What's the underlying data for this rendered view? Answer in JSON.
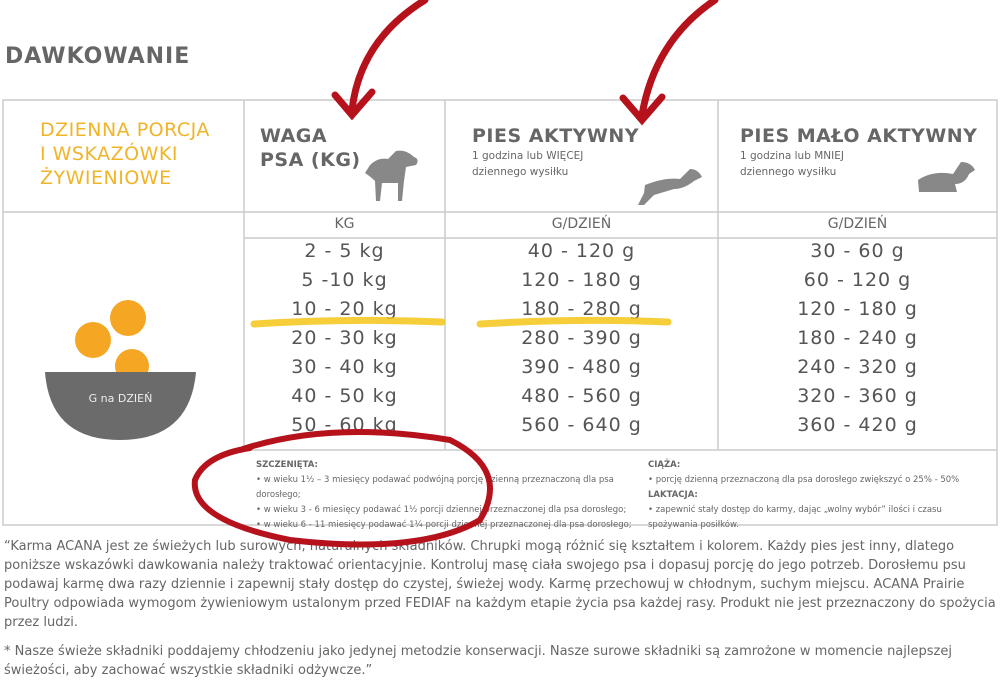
{
  "title": "DAWKOWANIE",
  "header": {
    "intro": [
      "DZIENNA PORCJA",
      "I WSKAZÓWKI",
      "ŻYWIENIOWE"
    ],
    "weight": [
      "WAGA",
      "PSA (KG)"
    ],
    "active": {
      "title": "PIES AKTYWNY",
      "subtitle": [
        "1 godzina lub WIĘCEJ",
        "dziennego wysiłku"
      ]
    },
    "inactive": {
      "title": "PIES MAŁO AKTYWNY",
      "subtitle": [
        "1 godzina lub MNIEJ",
        "dziennego wysiłku"
      ]
    }
  },
  "units": [
    "KG",
    "G/DZIEŃ",
    "G/DZIEŃ"
  ],
  "bowl_label": "G na DZIEŃ",
  "table": {
    "rows": [
      [
        "2 - 5 kg",
        "40 - 120 g",
        "30 - 60 g"
      ],
      [
        "5 -10 kg",
        "120 - 180 g",
        "60 - 120 g"
      ],
      [
        "10 - 20 kg",
        "180 - 280 g",
        "120 - 180 g"
      ],
      [
        "20 - 30 kg",
        "280 - 390 g",
        "180 - 240 g"
      ],
      [
        "30 - 40 kg",
        "390 - 480 g",
        "240 - 320 g"
      ],
      [
        "40 - 50 kg",
        "480 - 560 g",
        "320 - 360 g"
      ],
      [
        "50 - 60 kg",
        "560 - 640 g",
        "360 - 420 g"
      ]
    ]
  },
  "notes": {
    "puppies": {
      "title": "SZCZENIĘTA:",
      "items": [
        "w wieku 1½ – 3 miesięcy podawać podwójną porcję dzienną przeznaczoną dla psa dorosłego;",
        "w wieku 3 - 6 miesięcy podawać 1½ porcji dziennej przeznaczonej dla psa dorosłego;",
        "w wieku 6 - 11 miesięcy podawać 1¼ porcji dziennej przeznaczonej dla psa dorosłego;"
      ]
    },
    "pregnancy": {
      "title": "CIĄŻA:",
      "text": "porcję dzienną przeznaczoną dla psa dorosłego zwiększyć o 25% - 50%"
    },
    "lactation": {
      "title": "LAKTACJA:",
      "text": "zapewnić stały dostęp do karmy, dając „wolny wybór” ilości i czasu spożywania posiłków."
    }
  },
  "footer": [
    "“Karma ACANA jest ze świeżych lub surowych, naturalnych składników. Chrupki mogą różnić się kształtem i kolorem. Każdy pies jest inny, dlatego poniższe wskazówki dawkowania należy traktować orientacyjnie. Kontroluj masę ciała swojego psa i dopasuj porcję do jego potrzeb. Dorosłemu psu podawaj karmę dwa razy dziennie i zapewnij stały dostęp do czystej, świeżej wody. Karmę przechowuj w chłodnym, suchym miejscu. ACANA Prairie Poultry odpowiada wymogom żywieniowym ustalonym przed FEDIAF na każdym etapie życia psa każdej rasy. Produkt nie jest przeznaczony do spożycia przez ludzi.",
    "* Nasze świeże składniki poddajemy chłodzeniu jako jedynej metodzie konserwacji. Nasze surowe składniki są zamrożone w momencie najlepszej świeżości, aby zachować wszystkie składniki odżywcze.”"
  ]
}
